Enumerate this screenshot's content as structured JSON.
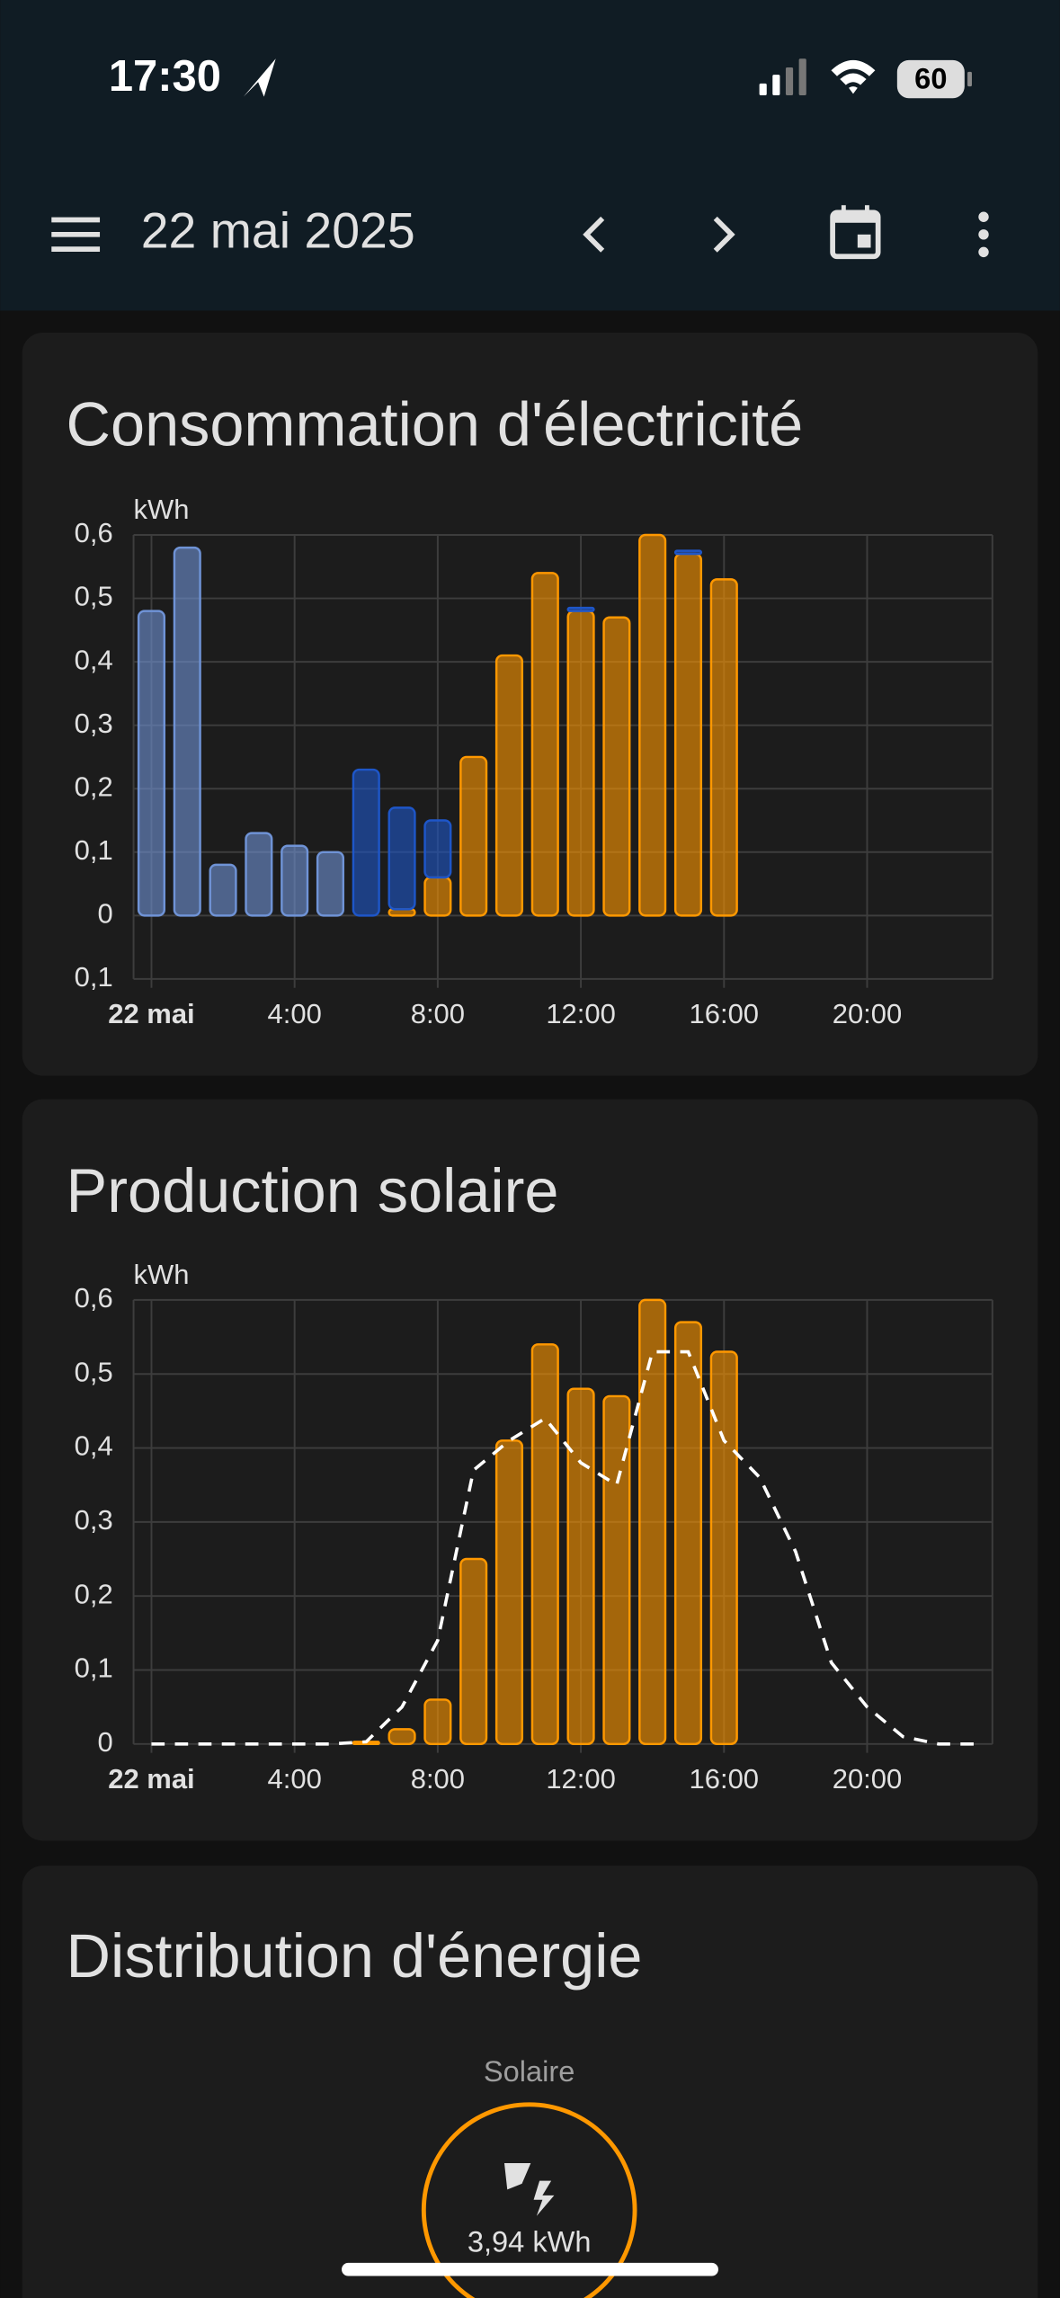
{
  "status_bar": {
    "time": "17:30",
    "battery": "60"
  },
  "header": {
    "title": "22 mai 2025"
  },
  "chart_data": [
    {
      "type": "bar",
      "title": "Consommation d'électricité",
      "y_label": "kWh",
      "grid": true,
      "x": [
        0,
        1,
        2,
        3,
        4,
        5,
        6,
        7,
        8,
        9,
        10,
        11,
        12,
        13,
        14,
        15,
        16,
        17,
        18,
        19,
        20,
        21,
        22,
        23
      ],
      "xlim": [
        -0.5,
        23.5
      ],
      "ylim": [
        -0.1,
        0.6
      ],
      "xticks": [
        {
          "value": 0,
          "label": "22 mai"
        },
        {
          "value": 4,
          "label": "4:00"
        },
        {
          "value": 8,
          "label": "8:00"
        },
        {
          "value": 12,
          "label": "12:00"
        },
        {
          "value": 16,
          "label": "16:00"
        },
        {
          "value": 20,
          "label": "20:00"
        }
      ],
      "yticks": [
        {
          "value": -0.1,
          "label": "0,1"
        },
        0,
        {
          "value": 0.1,
          "label": "0,1"
        },
        {
          "value": 0.2,
          "label": "0,2"
        },
        {
          "value": 0.3,
          "label": "0,3"
        },
        {
          "value": 0.4,
          "label": "0,4"
        },
        {
          "value": 0.5,
          "label": "0,5"
        },
        {
          "value": 0.6,
          "label": "0,6"
        }
      ],
      "series": [
        {
          "color": "#ff9800",
          "values": [
            0,
            0,
            0,
            0,
            0,
            0,
            0,
            0.01,
            0.06,
            0.25,
            0.41,
            0.54,
            0.48,
            0.47,
            0.6,
            0.57,
            0.53,
            null,
            null,
            null,
            null,
            null,
            null,
            null
          ]
        },
        {
          "color": "#6f93d6",
          "values": [
            0.48,
            0.58,
            0.08,
            0.13,
            0.11,
            0.1,
            0,
            0,
            0,
            0,
            0,
            0,
            0,
            0,
            0,
            0,
            0,
            null,
            null,
            null,
            null,
            null,
            null,
            null
          ]
        },
        {
          "color": "#1e56c8",
          "values": [
            0,
            0,
            0,
            0,
            0,
            0,
            0.23,
            0.16,
            0.09,
            0,
            0,
            0,
            0.005,
            0,
            0,
            0.005,
            0,
            null,
            null,
            null,
            null,
            null,
            null,
            null
          ]
        }
      ]
    },
    {
      "type": "bar",
      "title": "Production solaire",
      "y_label": "kWh",
      "grid": true,
      "x": [
        0,
        1,
        2,
        3,
        4,
        5,
        6,
        7,
        8,
        9,
        10,
        11,
        12,
        13,
        14,
        15,
        16,
        17,
        18,
        19,
        20,
        21,
        22,
        23
      ],
      "xlim": [
        -0.5,
        23.5
      ],
      "ylim": [
        0,
        0.6
      ],
      "xticks": [
        {
          "value": 0,
          "label": "22 mai"
        },
        {
          "value": 4,
          "label": "4:00"
        },
        {
          "value": 8,
          "label": "8:00"
        },
        {
          "value": 12,
          "label": "12:00"
        },
        {
          "value": 16,
          "label": "16:00"
        },
        {
          "value": 20,
          "label": "20:00"
        }
      ],
      "yticks": [
        0,
        {
          "value": 0.1,
          "label": "0,1"
        },
        {
          "value": 0.2,
          "label": "0,2"
        },
        {
          "value": 0.3,
          "label": "0,3"
        },
        {
          "value": 0.4,
          "label": "0,4"
        },
        {
          "value": 0.5,
          "label": "0,5"
        },
        {
          "value": 0.6,
          "label": "0,6"
        }
      ],
      "series": [
        {
          "color": "#ff9800",
          "values": [
            0,
            0,
            0,
            0,
            0,
            0,
            0.003,
            0.02,
            0.06,
            0.25,
            0.41,
            0.54,
            0.48,
            0.47,
            0.6,
            0.57,
            0.53,
            null,
            null,
            null,
            null,
            null,
            null,
            null
          ]
        },
        {
          "type": "line",
          "dashed": true,
          "color": "#ffffff",
          "values": [
            0,
            0,
            0,
            0,
            0,
            0,
            0.003,
            0.05,
            0.14,
            0.37,
            0.41,
            0.44,
            0.38,
            0.35,
            0.53,
            0.53,
            0.41,
            0.36,
            0.26,
            0.11,
            0.05,
            0.01,
            0,
            0
          ]
        }
      ]
    }
  ],
  "energy_distribution": {
    "title": "Distribution d'énergie",
    "node": {
      "label": "Solaire",
      "value": "3,94 kWh"
    }
  }
}
